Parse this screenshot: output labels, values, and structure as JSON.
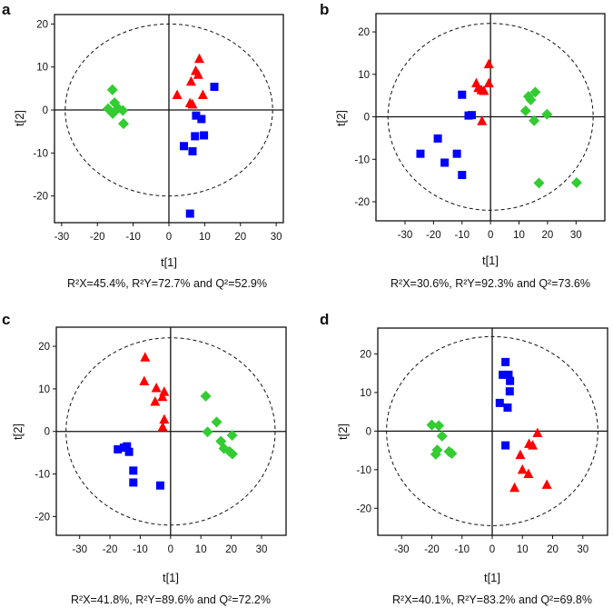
{
  "colors": {
    "group_red": "#ff0000",
    "group_blue": "#0000ff",
    "group_green": "#33cc33"
  },
  "chart_data": [
    {
      "type": "scatter",
      "panel": "a",
      "xlabel": "t[1]",
      "ylabel": "t[2]",
      "caption": "R²X=45.4%, R²Y=72.7% and Q²=52.9%",
      "xlim": [
        -32,
        32
      ],
      "ylim": [
        -26.2,
        22.2
      ],
      "xticks": [
        -30,
        -20,
        -10,
        0,
        10,
        20,
        30
      ],
      "yticks": [
        -20,
        -10,
        0,
        10,
        20
      ],
      "ellipse": [
        29,
        20
      ],
      "series": [
        {
          "name": "red",
          "marker": "triangle",
          "points": [
            [
              8.5,
              11.9
            ],
            [
              7.5,
              9.1
            ],
            [
              8.2,
              8.2
            ],
            [
              6.2,
              6.6
            ],
            [
              2.3,
              3.5
            ],
            [
              9.5,
              3.5
            ],
            [
              5.9,
              1.6
            ],
            [
              6.6,
              1.3
            ]
          ]
        },
        {
          "name": "blue",
          "marker": "square",
          "points": [
            [
              12.7,
              5.4
            ],
            [
              7.6,
              -1.3
            ],
            [
              9.1,
              -2.1
            ],
            [
              7.3,
              -6.1
            ],
            [
              9.8,
              -5.9
            ],
            [
              4.2,
              -8.4
            ],
            [
              6.6,
              -9.6
            ],
            [
              5.9,
              -24.1
            ]
          ]
        },
        {
          "name": "green",
          "marker": "diamond",
          "points": [
            [
              -15.8,
              4.7
            ],
            [
              -15.2,
              1.7
            ],
            [
              -17,
              0.3
            ],
            [
              -15.7,
              -0.8
            ],
            [
              -12.9,
              -0.1
            ],
            [
              -12.7,
              -3.2
            ],
            [
              -14.2,
              0.4
            ]
          ]
        }
      ]
    },
    {
      "type": "scatter",
      "panel": "b",
      "xlabel": "t[1]",
      "ylabel": "t[2]",
      "caption": "R²X=30.6%, R²Y=92.3% and Q²=73.6%",
      "xlim": [
        -40.2,
        40.1
      ],
      "ylim": [
        -24.5,
        24.3
      ],
      "xticks": [
        -30,
        -20,
        -10,
        0,
        10,
        20,
        30
      ],
      "yticks": [
        -20,
        -10,
        0,
        10,
        20
      ],
      "ellipse": [
        36,
        22
      ],
      "series": [
        {
          "name": "red",
          "marker": "triangle",
          "points": [
            [
              -0.6,
              12.4
            ],
            [
              -5,
              7.9
            ],
            [
              -0.6,
              7.9
            ],
            [
              -4.3,
              6.8
            ],
            [
              -3.2,
              6.3
            ],
            [
              -2.3,
              6.1
            ],
            [
              -3,
              -1
            ]
          ]
        },
        {
          "name": "blue",
          "marker": "square",
          "points": [
            [
              -10,
              5.2
            ],
            [
              -7.7,
              0.3
            ],
            [
              -6.6,
              0.4
            ],
            [
              -18.5,
              -5.1
            ],
            [
              -24.6,
              -8.7
            ],
            [
              -11.8,
              -8.7
            ],
            [
              -16.1,
              -10.8
            ],
            [
              -10,
              -13.7
            ]
          ]
        },
        {
          "name": "green",
          "marker": "diamond",
          "points": [
            [
              15.7,
              5.8
            ],
            [
              13.3,
              4.8
            ],
            [
              14.1,
              4
            ],
            [
              12.3,
              1.4
            ],
            [
              19.8,
              0.6
            ],
            [
              15.3,
              -0.9
            ],
            [
              17,
              -15.6
            ],
            [
              30.2,
              -15.5
            ]
          ]
        }
      ]
    },
    {
      "type": "scatter",
      "panel": "c",
      "xlabel": "t[1]",
      "ylabel": "t[2]",
      "caption": "R²X=41.8%, R²Y=89.6% and Q²=72.2%",
      "xlim": [
        -37.7,
        38.1
      ],
      "ylim": [
        -24.4,
        24.5
      ],
      "xticks": [
        -30,
        -20,
        -10,
        0,
        10,
        20,
        30
      ],
      "yticks": [
        -20,
        -10,
        0,
        10,
        20
      ],
      "ellipse": [
        34.5,
        22
      ],
      "series": [
        {
          "name": "red",
          "marker": "triangle",
          "points": [
            [
              -8.4,
              17.4
            ],
            [
              -8.7,
              11.8
            ],
            [
              -4.7,
              10.2
            ],
            [
              -2.1,
              9.3
            ],
            [
              -2.7,
              8.1
            ],
            [
              -5.1,
              7
            ],
            [
              -2.1,
              2.8
            ],
            [
              -2.6,
              1
            ]
          ]
        },
        {
          "name": "blue",
          "marker": "square",
          "points": [
            [
              -17.4,
              -4.2
            ],
            [
              -14.4,
              -3.5
            ],
            [
              -15.4,
              -3.8
            ],
            [
              -13.7,
              -4.8
            ],
            [
              -12.3,
              -9.2
            ],
            [
              -12.3,
              -12
            ],
            [
              -3.4,
              -12.7
            ]
          ]
        },
        {
          "name": "green",
          "marker": "diamond",
          "points": [
            [
              11.6,
              8.3
            ],
            [
              15.2,
              2.2
            ],
            [
              12.2,
              -0.1
            ],
            [
              20.3,
              -0.9
            ],
            [
              16.6,
              -2.3
            ],
            [
              17.6,
              -4
            ],
            [
              20.4,
              -5.3
            ],
            [
              19.4,
              -4.7
            ]
          ]
        }
      ]
    },
    {
      "type": "scatter",
      "panel": "d",
      "xlabel": "t[1]",
      "ylabel": "t[2]",
      "caption": "R²X=40.1%, R²Y=83.2% and Q²=69.8%",
      "xlim": [
        -37.9,
        38.2
      ],
      "ylim": [
        -27,
        26.7
      ],
      "xticks": [
        -30,
        -20,
        -10,
        0,
        10,
        20,
        30
      ],
      "yticks": [
        -20,
        -10,
        0,
        10,
        20
      ],
      "ellipse": [
        35,
        24.5
      ],
      "series": [
        {
          "name": "blue",
          "marker": "square",
          "points": [
            [
              4.4,
              17.9
            ],
            [
              3.5,
              14.6
            ],
            [
              5.4,
              14.6
            ],
            [
              5.9,
              13
            ],
            [
              5.8,
              10.3
            ],
            [
              2.5,
              7.3
            ],
            [
              5.1,
              6.1
            ],
            [
              4.4,
              -3.7
            ]
          ]
        },
        {
          "name": "red",
          "marker": "triangle",
          "points": [
            [
              15,
              -0.5
            ],
            [
              12.2,
              -3.3
            ],
            [
              13.4,
              -3.7
            ],
            [
              9.3,
              -6.2
            ],
            [
              10,
              -10
            ],
            [
              12,
              -11.1
            ],
            [
              7.4,
              -14.7
            ],
            [
              18.1,
              -13.9
            ]
          ]
        },
        {
          "name": "green",
          "marker": "diamond",
          "points": [
            [
              -20,
              1.6
            ],
            [
              -17.7,
              1.4
            ],
            [
              -16.6,
              -1.3
            ],
            [
              -18.2,
              -4.9
            ],
            [
              -18.7,
              -6
            ],
            [
              -14.3,
              -5.3
            ],
            [
              -13.4,
              -5.8
            ]
          ]
        }
      ]
    }
  ]
}
